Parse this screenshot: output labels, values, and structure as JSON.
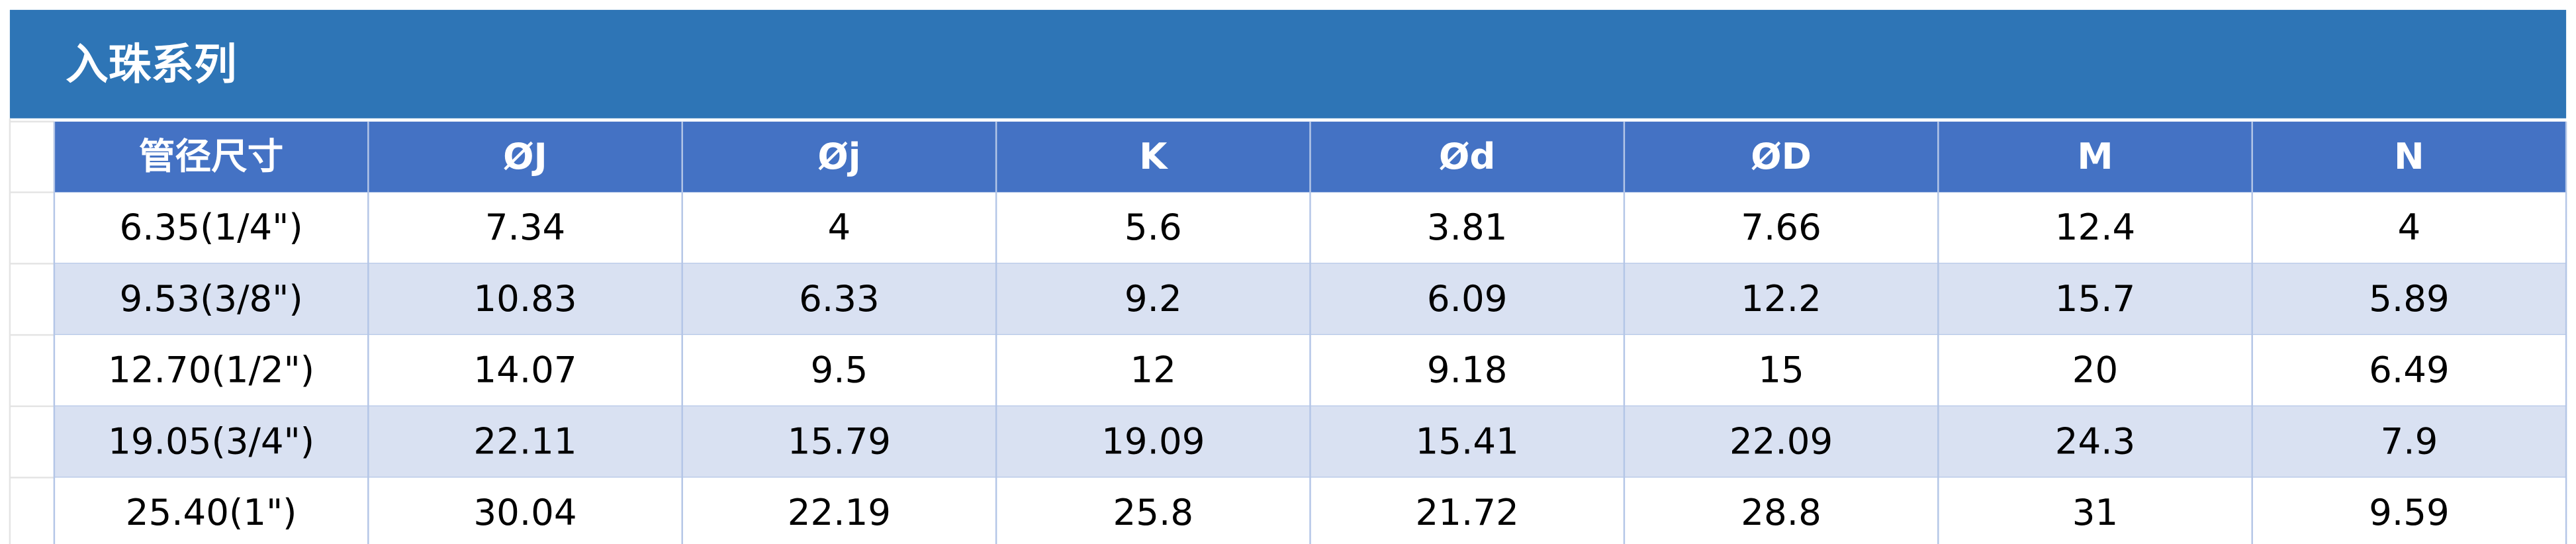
{
  "header": {
    "title": "入珠系列"
  },
  "table": {
    "columns": [
      "管径尺寸",
      "ØJ",
      "Øj",
      "K",
      "Ød",
      "ØD",
      "M",
      "N"
    ],
    "rows": [
      [
        "6.35(1/4\")",
        7.34,
        4,
        5.6,
        3.81,
        7.66,
        12.4,
        4
      ],
      [
        "9.53(3/8\")",
        10.83,
        6.33,
        9.2,
        6.09,
        12.2,
        15.7,
        5.89
      ],
      [
        "12.70(1/2\")",
        14.07,
        9.5,
        12,
        9.18,
        15,
        20,
        6.49
      ],
      [
        "19.05(3/4\")",
        22.11,
        15.79,
        19.09,
        15.41,
        22.09,
        24.3,
        7.9
      ],
      [
        "25.40(1\")",
        30.04,
        22.19,
        25.8,
        21.72,
        28.8,
        31,
        9.59
      ]
    ]
  }
}
